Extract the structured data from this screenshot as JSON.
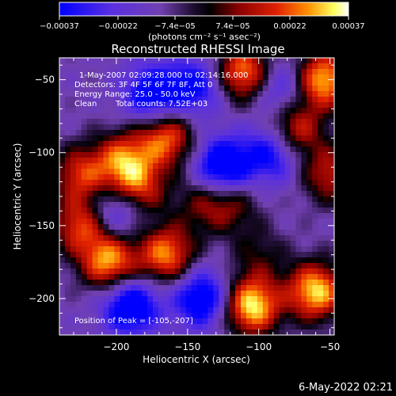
{
  "colorbar": {
    "ticks": [
      "-0.00037",
      "-0.00022",
      "-7.4e-05",
      "7.4e-05",
      "0.00022",
      "0.00037"
    ],
    "range": [
      -0.00037,
      0.00037
    ],
    "unit_label": "(photons cm⁻² s⁻¹ asec⁻²)",
    "colors": [
      "#0000ff",
      "#6a2bd0",
      "#1a0a2a",
      "#000000",
      "#7a0000",
      "#e01000",
      "#ff8000",
      "#ffee40",
      "#ffffff"
    ]
  },
  "annotations": {
    "time_range": "1-May-2007 02:09:28.000 to 02:14:16.000",
    "detectors": "Detectors: 3F 4F 5F 6F 7F 8F, Att 0",
    "energy_range": "Energy Range: 25.0 - 50.0 keV",
    "clean": "Clean",
    "total_counts": "Total counts: 7.52E+03",
    "peak": "Position of Peak = [-105,-207]"
  },
  "footer_timestamp": "6-May-2022 02:21",
  "chart_data": {
    "type": "heatmap",
    "title": "Reconstructed RHESSI Image",
    "xlabel": "Heliocentric X (arcsec)",
    "ylabel": "Heliocentric Y (arcsec)",
    "xlim": [
      -240,
      -47
    ],
    "ylim": [
      -225,
      -35
    ],
    "xticks": [
      -200,
      -150,
      -100,
      -50
    ],
    "yticks": [
      -50,
      -100,
      -150,
      -200
    ],
    "xtick_labels": [
      "−200",
      "−150",
      "−100",
      "−50"
    ],
    "ytick_labels": [
      "−50",
      "−100",
      "−150",
      "−200"
    ],
    "peak_position": [
      -105,
      -207
    ],
    "blobs": [
      {
        "x": -110,
        "y": -45,
        "intensity": 0.0003
      },
      {
        "x": -55,
        "y": -50,
        "intensity": 0.00033
      },
      {
        "x": -75,
        "y": -85,
        "intensity": 0.00024
      },
      {
        "x": -165,
        "y": -90,
        "intensity": 0.00027
      },
      {
        "x": -195,
        "y": -105,
        "intensity": 0.00025
      },
      {
        "x": -225,
        "y": -115,
        "intensity": 0.00022
      },
      {
        "x": -185,
        "y": -125,
        "intensity": 0.00023
      },
      {
        "x": -165,
        "y": -170,
        "intensity": 0.00029
      },
      {
        "x": -205,
        "y": -175,
        "intensity": 0.00031
      },
      {
        "x": -225,
        "y": -150,
        "intensity": 0.00024
      },
      {
        "x": -140,
        "y": -135,
        "intensity": 0.00012
      },
      {
        "x": -105,
        "y": -205,
        "intensity": 0.00036
      },
      {
        "x": -60,
        "y": -195,
        "intensity": 0.00034
      },
      {
        "x": -50,
        "y": -115,
        "intensity": 0.0002
      },
      {
        "x": -120,
        "y": -135,
        "intensity": 0.00015
      },
      {
        "x": -100,
        "y": -170,
        "intensity": 0.0001
      },
      {
        "x": -145,
        "y": -55,
        "intensity": -0.0002
      },
      {
        "x": -125,
        "y": -110,
        "intensity": -0.0003
      },
      {
        "x": -175,
        "y": -60,
        "intensity": -0.00024
      },
      {
        "x": -190,
        "y": -205,
        "intensity": -0.00028
      },
      {
        "x": -140,
        "y": -200,
        "intensity": -0.00026
      },
      {
        "x": -90,
        "y": -100,
        "intensity": -0.00022
      },
      {
        "x": -200,
        "y": -140,
        "intensity": -0.00018
      },
      {
        "x": -85,
        "y": -55,
        "intensity": -0.00016
      }
    ]
  }
}
